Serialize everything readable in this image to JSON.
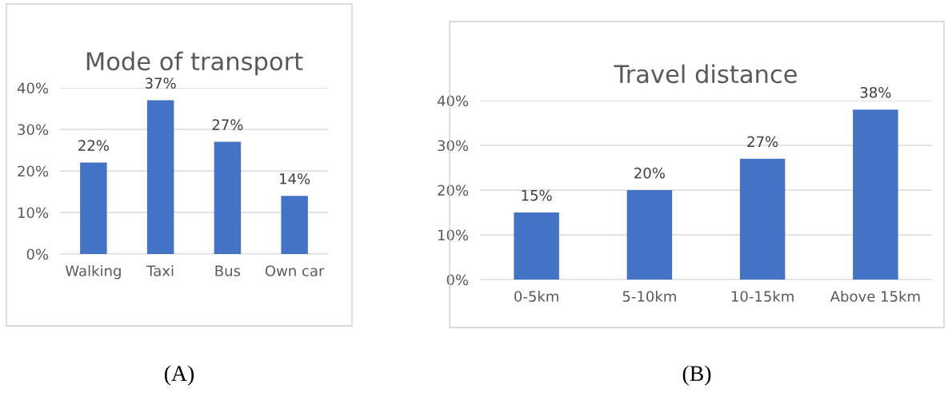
{
  "chart_data": [
    {
      "type": "bar",
      "title": "Mode of transport",
      "categories": [
        "Walking",
        "Taxi",
        "Bus",
        "Own car"
      ],
      "values": [
        22,
        37,
        27,
        14
      ],
      "color": "#4472c4",
      "ylim": [
        0,
        40
      ],
      "yticks": [
        {
          "value": 0,
          "label": "0%"
        },
        {
          "value": 10,
          "label": "10%"
        },
        {
          "value": 20,
          "label": "20%"
        },
        {
          "value": 30,
          "label": "30%"
        },
        {
          "value": 40,
          "label": "40%"
        }
      ],
      "value_labels": [
        "22%",
        "37%",
        "27%",
        "14%"
      ],
      "grid": "y",
      "annotations": [
        "(A)"
      ]
    },
    {
      "type": "bar",
      "title": "Travel distance",
      "categories": [
        "0-5km",
        "5-10km",
        "10-15km",
        "Above 15km"
      ],
      "values": [
        15,
        20,
        27,
        38
      ],
      "color": "#4472c4",
      "ylim": [
        0,
        40
      ],
      "yticks": [
        {
          "value": 0,
          "label": "0%"
        },
        {
          "value": 10,
          "label": "10%"
        },
        {
          "value": 20,
          "label": "20%"
        },
        {
          "value": 30,
          "label": "30%"
        },
        {
          "value": 40,
          "label": "40%"
        }
      ],
      "value_labels": [
        "15%",
        "20%",
        "27%",
        "38%"
      ],
      "grid": "y",
      "annotations": [
        "(B)"
      ]
    }
  ]
}
